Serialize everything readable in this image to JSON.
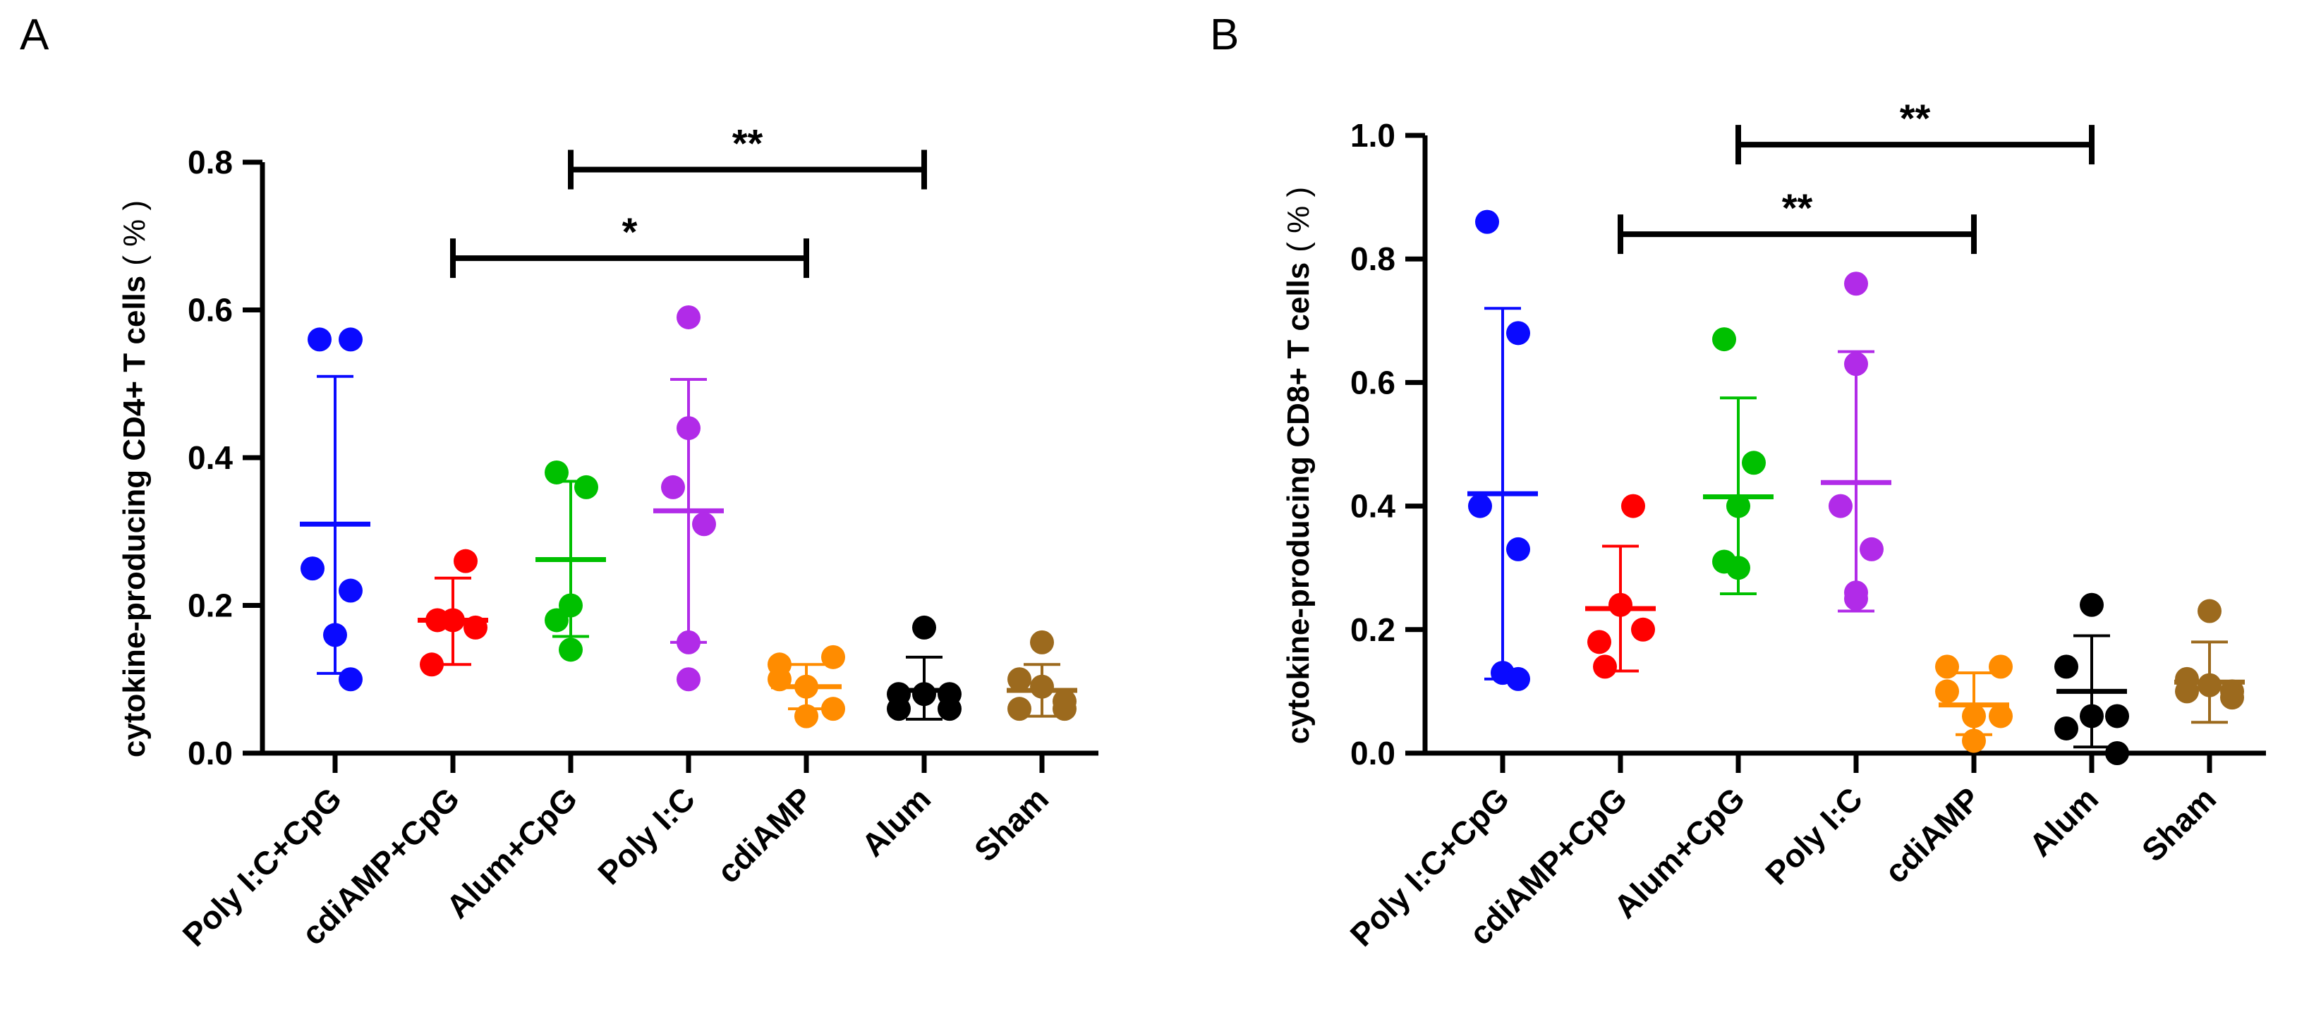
{
  "chart_data": [
    {
      "type": "scatter",
      "panel_label": "A",
      "ylabel": "cytokine-producing CD4+ T cells",
      "ylabel_unit": "( % )",
      "ylim": [
        0,
        0.8
      ],
      "yticks": [
        "0.0",
        "0.2",
        "0.4",
        "0.6",
        "0.8"
      ],
      "categories": [
        "Poly I:C+CpG",
        "cdiAMP+CpG",
        "Alum+CpG",
        "Poly I:C",
        "cdiAMP",
        "Alum",
        "Sham"
      ],
      "colors": [
        "#0a0aff",
        "#ff0000",
        "#00c000",
        "#b12be8",
        "#ff8c00",
        "#000000",
        "#9c6a1e"
      ],
      "series": [
        {
          "name": "Poly I:C+CpG",
          "points": [
            0.56,
            0.56,
            0.25,
            0.22,
            0.16,
            0.1
          ],
          "mean": 0.31,
          "sd_low": 0.108,
          "sd_high": 0.51
        },
        {
          "name": "cdiAMP+CpG",
          "points": [
            0.26,
            0.18,
            0.17,
            0.18,
            0.12
          ],
          "mean": 0.18,
          "sd_low": 0.12,
          "sd_high": 0.237
        },
        {
          "name": "Alum+CpG",
          "points": [
            0.38,
            0.36,
            0.2,
            0.18,
            0.14
          ],
          "mean": 0.262,
          "sd_low": 0.158,
          "sd_high": 0.368
        },
        {
          "name": "Poly I:C",
          "points": [
            0.59,
            0.44,
            0.36,
            0.31,
            0.15,
            0.1
          ],
          "mean": 0.328,
          "sd_low": 0.15,
          "sd_high": 0.506
        },
        {
          "name": "cdiAMP",
          "points": [
            0.12,
            0.13,
            0.1,
            0.09,
            0.06,
            0.05
          ],
          "mean": 0.09,
          "sd_low": 0.06,
          "sd_high": 0.12
        },
        {
          "name": "Alum",
          "points": [
            0.17,
            0.08,
            0.08,
            0.08,
            0.06,
            0.06
          ],
          "mean": 0.085,
          "sd_low": 0.046,
          "sd_high": 0.13
        },
        {
          "name": "Sham",
          "points": [
            0.15,
            0.1,
            0.09,
            0.07,
            0.06,
            0.06
          ],
          "mean": 0.085,
          "sd_low": 0.05,
          "sd_high": 0.12
        }
      ],
      "significance": [
        {
          "from": 1,
          "to": 4,
          "y": 0.67,
          "label": "*"
        },
        {
          "from": 2,
          "to": 5,
          "y": 0.79,
          "label": "**"
        }
      ]
    },
    {
      "type": "scatter",
      "panel_label": "B",
      "ylabel": "cytokine-producing CD8+ T cells",
      "ylabel_unit": "( % )",
      "ylim": [
        0,
        1.0
      ],
      "yticks": [
        "0.0",
        "0.2",
        "0.4",
        "0.6",
        "0.8",
        "1.0"
      ],
      "categories": [
        "Poly I:C+CpG",
        "cdiAMP+CpG",
        "Alum+CpG",
        "Poly I:C",
        "cdiAMP",
        "Alum",
        "Sham"
      ],
      "colors": [
        "#0a0aff",
        "#ff0000",
        "#00c000",
        "#b12be8",
        "#ff8c00",
        "#000000",
        "#9c6a1e"
      ],
      "series": [
        {
          "name": "Poly I:C+CpG",
          "points": [
            0.86,
            0.68,
            0.4,
            0.33,
            0.13,
            0.12
          ],
          "mean": 0.42,
          "sd_low": 0.12,
          "sd_high": 0.72
        },
        {
          "name": "cdiAMP+CpG",
          "points": [
            0.4,
            0.24,
            0.2,
            0.14,
            0.18
          ],
          "mean": 0.234,
          "sd_low": 0.133,
          "sd_high": 0.335
        },
        {
          "name": "Alum+CpG",
          "points": [
            0.67,
            0.47,
            0.4,
            0.31,
            0.3
          ],
          "mean": 0.415,
          "sd_low": 0.258,
          "sd_high": 0.575
        },
        {
          "name": "Poly I:C",
          "points": [
            0.76,
            0.63,
            0.4,
            0.33,
            0.26,
            0.25
          ],
          "mean": 0.438,
          "sd_low": 0.23,
          "sd_high": 0.65
        },
        {
          "name": "cdiAMP",
          "points": [
            0.14,
            0.14,
            0.1,
            0.06,
            0.06,
            0.02
          ],
          "mean": 0.078,
          "sd_low": 0.03,
          "sd_high": 0.13
        },
        {
          "name": "Alum",
          "points": [
            0.24,
            0.14,
            0.06,
            0.06,
            0.04,
            0.0
          ],
          "mean": 0.1,
          "sd_low": 0.01,
          "sd_high": 0.19
        },
        {
          "name": "Sham",
          "points": [
            0.23,
            0.12,
            0.11,
            0.1,
            0.1,
            0.09
          ],
          "mean": 0.115,
          "sd_low": 0.05,
          "sd_high": 0.18
        }
      ],
      "significance": [
        {
          "from": 2,
          "to": 5,
          "y": 0.985,
          "label": "**"
        },
        {
          "from": 1,
          "to": 4,
          "y": 0.84,
          "label": "**"
        }
      ]
    }
  ]
}
